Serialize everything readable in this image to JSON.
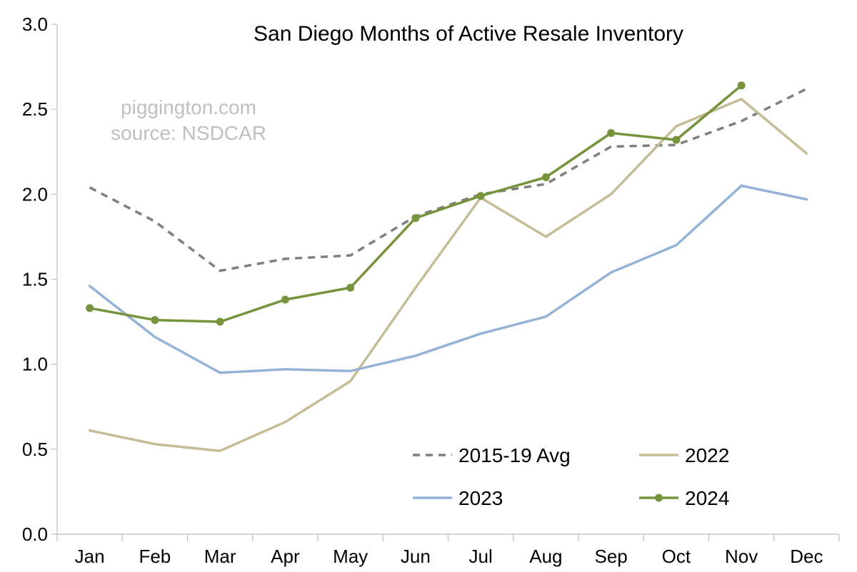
{
  "chart_data": {
    "type": "line",
    "title": "San Diego Months of Active Resale Inventory",
    "annotations": [
      "piggington.com",
      "source: NSDCAR"
    ],
    "xlabel": "",
    "ylabel": "",
    "categories": [
      "Jan",
      "Feb",
      "Mar",
      "Apr",
      "May",
      "Jun",
      "Jul",
      "Aug",
      "Sep",
      "Oct",
      "Nov",
      "Dec"
    ],
    "yticks": [
      "0.0",
      "0.5",
      "1.0",
      "1.5",
      "2.0",
      "2.5",
      "3.0"
    ],
    "ylim": [
      0,
      3.0
    ],
    "grid": false,
    "legend_position": "bottom-right",
    "series": [
      {
        "name": "2015-19 Avg",
        "color": "#7f7f7f",
        "style": "dashed",
        "markers": false,
        "values": [
          2.04,
          1.84,
          1.55,
          1.62,
          1.64,
          1.87,
          2.0,
          2.06,
          2.28,
          2.29,
          2.43,
          2.62
        ]
      },
      {
        "name": "2022",
        "color": "#c5bd97",
        "style": "solid",
        "markers": false,
        "values": [
          0.61,
          0.53,
          0.49,
          0.66,
          0.9,
          1.45,
          1.98,
          1.75,
          2.0,
          2.4,
          2.56,
          2.24
        ]
      },
      {
        "name": "2023",
        "color": "#95b3d7",
        "style": "solid",
        "markers": false,
        "values": [
          1.46,
          1.16,
          0.95,
          0.97,
          0.96,
          1.05,
          1.18,
          1.28,
          1.54,
          1.7,
          2.05,
          1.97
        ]
      },
      {
        "name": "2024",
        "color": "#77933c",
        "style": "solid",
        "markers": true,
        "values": [
          1.33,
          1.26,
          1.25,
          1.38,
          1.45,
          1.86,
          1.99,
          2.1,
          2.36,
          2.32,
          2.64,
          null
        ]
      }
    ]
  }
}
